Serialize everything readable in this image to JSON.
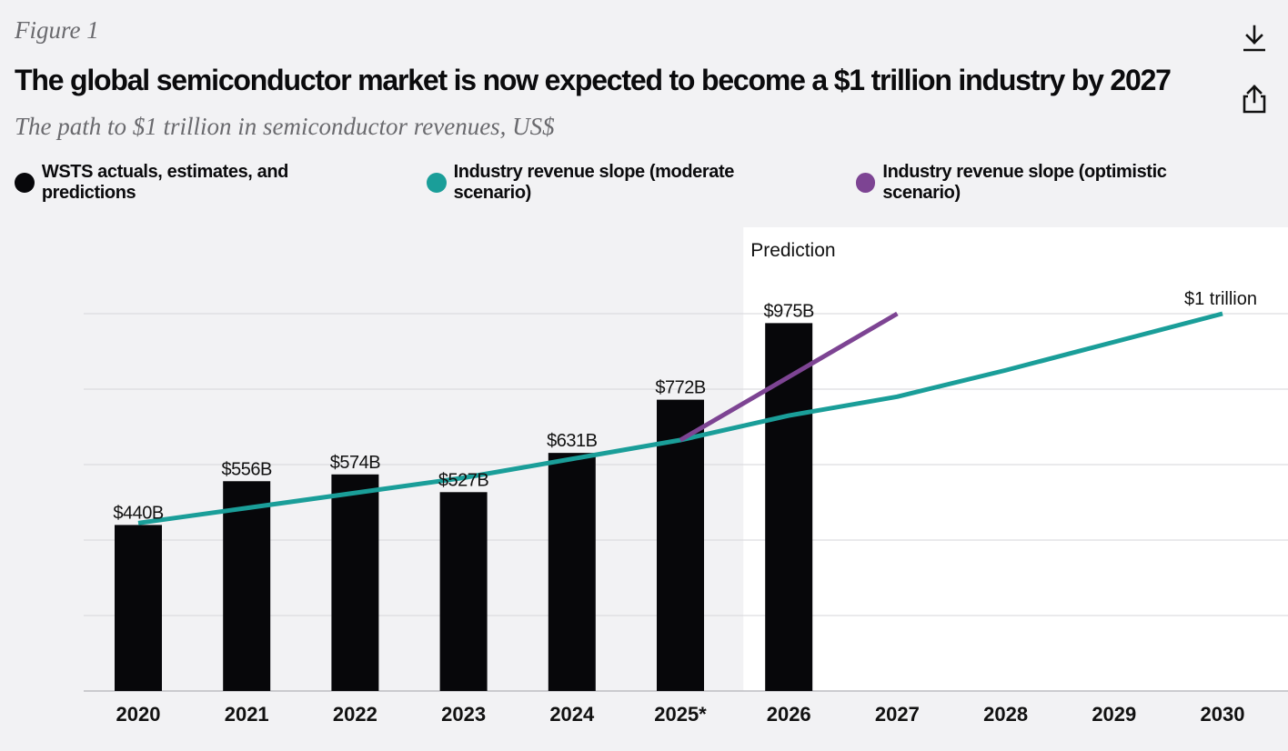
{
  "header": {
    "figure_label": "Figure 1",
    "title": "The global semiconductor market is now expected to become a $1 trillion industry by 2027",
    "subtitle": "The path to $1 trillion in semiconductor revenues, US$"
  },
  "toolbar": {
    "download_icon": "download-icon",
    "share_icon": "share-icon"
  },
  "colors": {
    "bars": "#07070a",
    "moderate": "#1a9e99",
    "optimistic": "#7d4493",
    "prediction_panel": "#ffffff",
    "grid": "#d6d6da"
  },
  "legend": [
    {
      "label": "WSTS actuals, estimates, and predictions",
      "color": "#07070a"
    },
    {
      "label": "Industry revenue slope (moderate scenario)",
      "color": "#1a9e99"
    },
    {
      "label": "Industry revenue slope (optimistic scenario)",
      "color": "#7d4493"
    }
  ],
  "chart_data": {
    "type": "bar",
    "title": "The global semiconductor market is now expected to become a $1 trillion industry by 2027",
    "subtitle": "The path to $1 trillion in semiconductor revenues, US$",
    "categories": [
      "2020",
      "2021",
      "2022",
      "2023",
      "2024",
      "2025*",
      "2026",
      "2027",
      "2028",
      "2029",
      "2030"
    ],
    "ylim": [
      0,
      1000
    ],
    "grid": true,
    "prediction_label": "Prediction",
    "prediction_start": "2026",
    "series": [
      {
        "name": "WSTS actuals, estimates, and predictions",
        "type": "bar",
        "values": [
          440,
          556,
          574,
          527,
          631,
          772,
          975,
          null,
          null,
          null,
          null
        ],
        "labels": [
          "$440B",
          "$556B",
          "$574B",
          "$527B",
          "$631B",
          "$772B",
          "$975B",
          null,
          null,
          null,
          null
        ]
      },
      {
        "name": "Industry revenue slope (moderate scenario)",
        "type": "line",
        "x": [
          "2020",
          "2021",
          "2022",
          "2023",
          "2024",
          "2025*",
          "2026",
          "2027",
          "2028",
          "2029",
          "2030"
        ],
        "values": [
          445,
          485,
          525,
          565,
          615,
          665,
          730,
          780,
          850,
          925,
          1000
        ],
        "end_label": "$1 trillion"
      },
      {
        "name": "Industry revenue slope (optimistic scenario)",
        "type": "line",
        "x": [
          "2025*",
          "2027"
        ],
        "values": [
          665,
          1000
        ]
      }
    ]
  }
}
